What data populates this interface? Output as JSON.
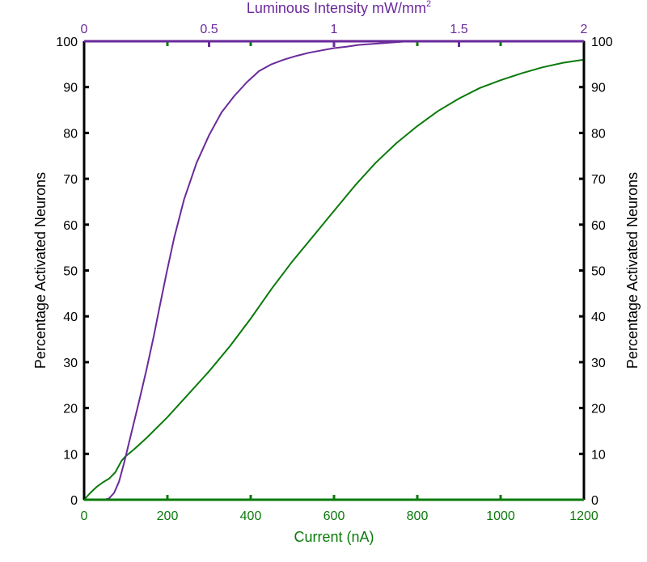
{
  "chart_data": {
    "type": "line",
    "title": "",
    "colors": {
      "current": "#0b7a0b",
      "luminous": "#6a2a9a",
      "frame": "#000000"
    },
    "axes": {
      "x_bottom": {
        "label": "Current (nA)",
        "range": [
          0,
          1200
        ],
        "ticks": [
          0,
          200,
          400,
          600,
          800,
          1000,
          1200
        ],
        "tick_labels": [
          "0",
          "200",
          "400",
          "600",
          "800",
          "1000",
          "1200"
        ]
      },
      "x_top": {
        "label": "Luminous Intensity mW/mm",
        "label_superscript": "2",
        "range": [
          0,
          2
        ],
        "ticks": [
          0,
          0.5,
          1,
          1.5,
          2
        ],
        "tick_labels": [
          "0",
          "0.5",
          "1",
          "1.5",
          "2"
        ]
      },
      "y_left": {
        "label": "Percentage Activated Neurons",
        "range": [
          0,
          100
        ],
        "ticks": [
          0,
          10,
          20,
          30,
          40,
          50,
          60,
          70,
          80,
          90,
          100
        ],
        "tick_labels": [
          "0",
          "10",
          "20",
          "30",
          "40",
          "50",
          "60",
          "70",
          "80",
          "90",
          "100"
        ]
      },
      "y_right": {
        "label": "Percentage Activated Neurons",
        "range": [
          0,
          100
        ],
        "ticks": [
          0,
          10,
          20,
          30,
          40,
          50,
          60,
          70,
          80,
          90,
          100
        ],
        "tick_labels": [
          "0",
          "10",
          "20",
          "30",
          "40",
          "50",
          "60",
          "70",
          "80",
          "90",
          "100"
        ]
      }
    },
    "series": [
      {
        "axis": "bottom",
        "color": "#0b7a0b",
        "x": [
          0,
          15,
          30,
          45,
          60,
          75,
          90,
          100,
          120,
          150,
          200,
          250,
          300,
          350,
          400,
          450,
          500,
          550,
          600,
          650,
          700,
          750,
          800,
          850,
          900,
          950,
          1000,
          1050,
          1100,
          1150,
          1200
        ],
        "y": [
          0,
          1.5,
          2.8,
          3.8,
          4.6,
          6,
          8.5,
          9.5,
          11,
          13.5,
          18,
          23,
          28,
          33.5,
          39.5,
          46,
          52,
          57.5,
          63,
          68.5,
          73.5,
          77.8,
          81.5,
          84.8,
          87.5,
          89.8,
          91.5,
          93,
          94.3,
          95.3,
          96
        ]
      },
      {
        "axis": "top",
        "color": "#6a2a9a",
        "x": [
          0,
          0.08,
          0.1,
          0.12,
          0.14,
          0.16,
          0.18,
          0.2,
          0.22,
          0.25,
          0.28,
          0.3,
          0.33,
          0.36,
          0.4,
          0.45,
          0.5,
          0.55,
          0.6,
          0.65,
          0.7,
          0.75,
          0.8,
          0.85,
          0.9,
          0.95,
          1,
          1.05,
          1.1,
          1.2,
          1.3,
          1.5,
          1.75,
          2
        ],
        "y": [
          0,
          0,
          0.3,
          1.5,
          4,
          8,
          12.5,
          17,
          21.5,
          28.5,
          36,
          41.5,
          49.5,
          57,
          65.5,
          73.5,
          79.5,
          84.5,
          88,
          91,
          93.5,
          95,
          96,
          96.8,
          97.5,
          98,
          98.5,
          98.8,
          99.2,
          99.6,
          100,
          100,
          100,
          100
        ]
      }
    ]
  }
}
